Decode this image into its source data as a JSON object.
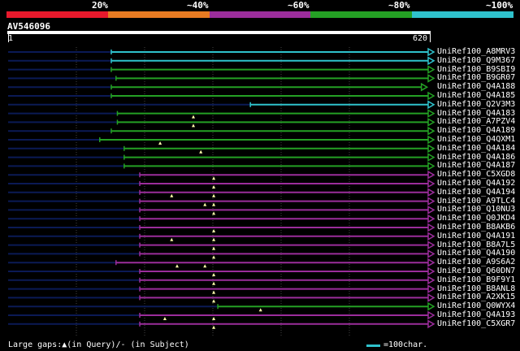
{
  "legend": {
    "segments": [
      {
        "label": "20%",
        "color": "#e8192c"
      },
      {
        "label": "~40%",
        "color": "#e87b22"
      },
      {
        "label": "~60%",
        "color": "#9b2d9b"
      },
      {
        "label": "~80%",
        "color": "#24a024"
      },
      {
        "label": "~100%",
        "color": "#2fc2cc"
      }
    ]
  },
  "query": {
    "name": "AV546096",
    "start": "1",
    "end": "620"
  },
  "colors": {
    "dark": "#0b1a55",
    "cyan": "#2fc2cc",
    "green": "#24a024",
    "purple": "#9b2d9b",
    "gap": "#ffffaa",
    "grid": "#444444"
  },
  "hits": [
    {
      "name": "UniRef100_A8MRV3",
      "color": "cyan",
      "start": 153,
      "end": 620,
      "gaps": []
    },
    {
      "name": "UniRef100_Q9M367",
      "color": "cyan",
      "start": 153,
      "end": 620,
      "gaps": []
    },
    {
      "name": "UniRef100_B9SBI9",
      "color": "green",
      "start": 153,
      "end": 620,
      "gaps": []
    },
    {
      "name": "UniRef100_B9GR07",
      "color": "green",
      "start": 160,
      "end": 620,
      "gaps": []
    },
    {
      "name": "UniRef100_Q4A188",
      "color": "green",
      "start": 153,
      "end": 610,
      "gaps": []
    },
    {
      "name": "UniRef100_Q4A185",
      "color": "green",
      "start": 153,
      "end": 620,
      "gaps": []
    },
    {
      "name": "UniRef100_Q2V3M3",
      "color": "cyan",
      "start": 358,
      "end": 620,
      "gaps": []
    },
    {
      "name": "UniRef100_Q4A183",
      "color": "green",
      "start": 162,
      "end": 620,
      "gaps": [
        274
      ]
    },
    {
      "name": "UniRef100_A7PZV4",
      "color": "green",
      "start": 162,
      "end": 620,
      "gaps": [
        274
      ]
    },
    {
      "name": "UniRef100_Q4A189",
      "color": "green",
      "start": 153,
      "end": 620,
      "gaps": []
    },
    {
      "name": "UniRef100_Q4QXM1",
      "color": "green",
      "start": 136,
      "end": 620,
      "gaps": [
        225
      ]
    },
    {
      "name": "UniRef100_Q4A184",
      "color": "green",
      "start": 172,
      "end": 620,
      "gaps": [
        285
      ]
    },
    {
      "name": "UniRef100_Q4A186",
      "color": "green",
      "start": 172,
      "end": 620,
      "gaps": []
    },
    {
      "name": "UniRef100_Q4A187",
      "color": "green",
      "start": 172,
      "end": 620,
      "gaps": []
    },
    {
      "name": "UniRef100_C5XGD8",
      "color": "purple",
      "start": 195,
      "end": 620,
      "gaps": [
        304
      ]
    },
    {
      "name": "UniRef100_Q4A192",
      "color": "purple",
      "start": 195,
      "end": 620,
      "gaps": [
        304
      ]
    },
    {
      "name": "UniRef100_Q4A194",
      "color": "purple",
      "start": 195,
      "end": 620,
      "gaps": [
        242,
        304
      ]
    },
    {
      "name": "UniRef100_A9TLC4",
      "color": "purple",
      "start": 195,
      "end": 620,
      "gaps": [
        291,
        304
      ]
    },
    {
      "name": "UniRef100_Q10NU3",
      "color": "purple",
      "start": 195,
      "end": 620,
      "gaps": [
        304
      ]
    },
    {
      "name": "UniRef100_Q0JKD4",
      "color": "purple",
      "start": 195,
      "end": 620,
      "gaps": []
    },
    {
      "name": "UniRef100_B8AKB6",
      "color": "purple",
      "start": 195,
      "end": 620,
      "gaps": [
        304
      ]
    },
    {
      "name": "UniRef100_Q4A191",
      "color": "purple",
      "start": 195,
      "end": 620,
      "gaps": [
        242,
        304
      ]
    },
    {
      "name": "UniRef100_B8A7L5",
      "color": "purple",
      "start": 195,
      "end": 620,
      "gaps": [
        304
      ]
    },
    {
      "name": "UniRef100_Q4A190",
      "color": "purple",
      "start": 195,
      "end": 620,
      "gaps": [
        304
      ]
    },
    {
      "name": "UniRef100_A9S6A2",
      "color": "purple",
      "start": 160,
      "end": 620,
      "gaps": [
        250,
        291
      ]
    },
    {
      "name": "UniRef100_Q60DN7",
      "color": "purple",
      "start": 195,
      "end": 620,
      "gaps": [
        304
      ]
    },
    {
      "name": "UniRef100_B9F9Y1",
      "color": "purple",
      "start": 195,
      "end": 620,
      "gaps": [
        304
      ]
    },
    {
      "name": "UniRef100_B8ANL8",
      "color": "purple",
      "start": 195,
      "end": 620,
      "gaps": [
        304
      ]
    },
    {
      "name": "UniRef100_A2XK15",
      "color": "purple",
      "start": 195,
      "end": 620,
      "gaps": [
        304
      ]
    },
    {
      "name": "UniRef100_Q0WYX4",
      "color": "green",
      "start": 310,
      "end": 620,
      "gaps": [
        373
      ]
    },
    {
      "name": "UniRef100_Q4A193",
      "color": "purple",
      "start": 195,
      "end": 620,
      "gaps": [
        232,
        304
      ]
    },
    {
      "name": "UniRef100_C5XGR7",
      "color": "purple",
      "start": 195,
      "end": 620,
      "gaps": [
        304
      ]
    }
  ],
  "footer": {
    "gaps_note": "Large gaps:▲(in Query)/- (in Subject)",
    "scale_note": "=100char."
  }
}
